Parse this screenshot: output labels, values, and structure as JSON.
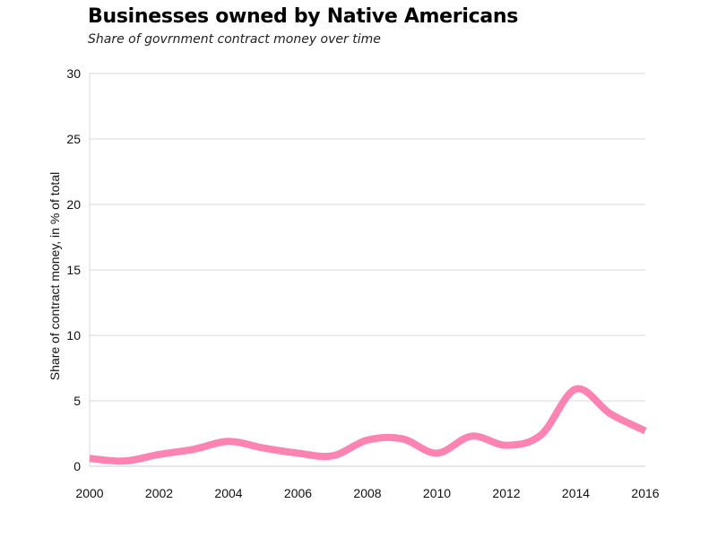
{
  "header": {
    "title": "Businesses owned by Native Americans",
    "subtitle": "Share of govrnment contract money over time"
  },
  "colors": {
    "line": "#fc83b2",
    "grid": "#d9d9d9",
    "axis_text": "#111111"
  },
  "chart_data": {
    "type": "line",
    "title": "Businesses owned by Native Americans",
    "subtitle": "Share of govrnment contract money over time",
    "xlabel": "",
    "ylabel": "Share of contract money, in % of total",
    "xlim": [
      2000,
      2016
    ],
    "ylim": [
      0,
      30
    ],
    "x_ticks": [
      2000,
      2002,
      2004,
      2006,
      2008,
      2010,
      2012,
      2014,
      2016
    ],
    "y_ticks": [
      0,
      5,
      10,
      15,
      20,
      25,
      30
    ],
    "grid": true,
    "legend": "none",
    "series": [
      {
        "x": [
          2000,
          2001,
          2002,
          2003,
          2004,
          2005,
          2006,
          2007,
          2008,
          2009,
          2010,
          2011,
          2012,
          2013,
          2014,
          2015,
          2016
        ],
        "values": [
          0.6,
          0.4,
          0.9,
          1.3,
          1.9,
          1.4,
          1.0,
          0.8,
          2.0,
          2.1,
          1.0,
          2.3,
          1.6,
          2.4,
          5.9,
          4.0,
          2.7
        ]
      }
    ]
  }
}
